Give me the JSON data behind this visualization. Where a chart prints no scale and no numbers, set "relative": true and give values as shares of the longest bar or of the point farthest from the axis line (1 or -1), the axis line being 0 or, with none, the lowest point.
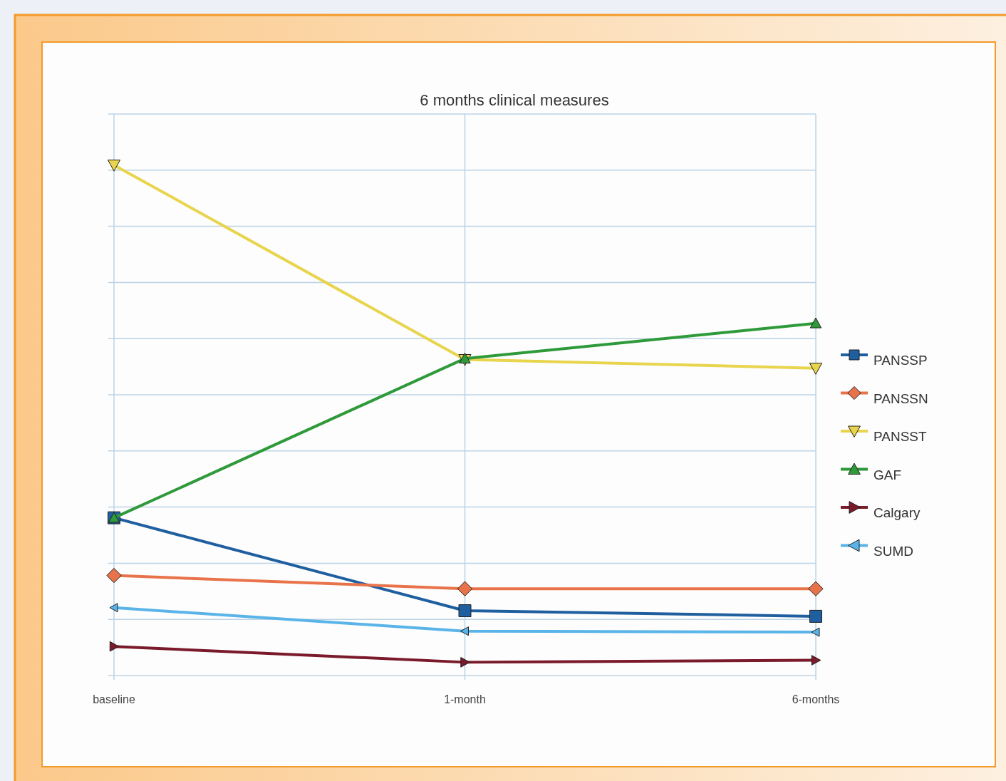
{
  "chart_data": {
    "type": "line",
    "title": "6 months clinical measures",
    "categories": [
      "baseline",
      "1-month",
      "6-months"
    ],
    "relative": true,
    "grid": true,
    "legend": "right",
    "series": [
      {
        "name": "PANSSP",
        "color": "#1f5fa0",
        "marker": "square",
        "values": [
          0.309,
          0.127,
          0.116
        ]
      },
      {
        "name": "PANSSN",
        "color": "#e8734a",
        "marker": "diamond",
        "values": [
          0.196,
          0.17,
          0.17
        ]
      },
      {
        "name": "PANSST",
        "color": "#e8d44d",
        "marker": "triangle-down",
        "values": [
          1,
          0.619,
          0.602
        ]
      },
      {
        "name": "GAF",
        "color": "#2e9a3a",
        "marker": "triangle",
        "values": [
          0.309,
          0.621,
          0.69
        ]
      },
      {
        "name": "Calgary",
        "color": "#7a1a2a",
        "marker": "triangle-right",
        "values": [
          0.057,
          0.026,
          0.03
        ]
      },
      {
        "name": "SUMD",
        "color": "#5ab4e8",
        "marker": "triangle-left",
        "values": [
          0.133,
          0.087,
          0.085
        ]
      }
    ]
  }
}
